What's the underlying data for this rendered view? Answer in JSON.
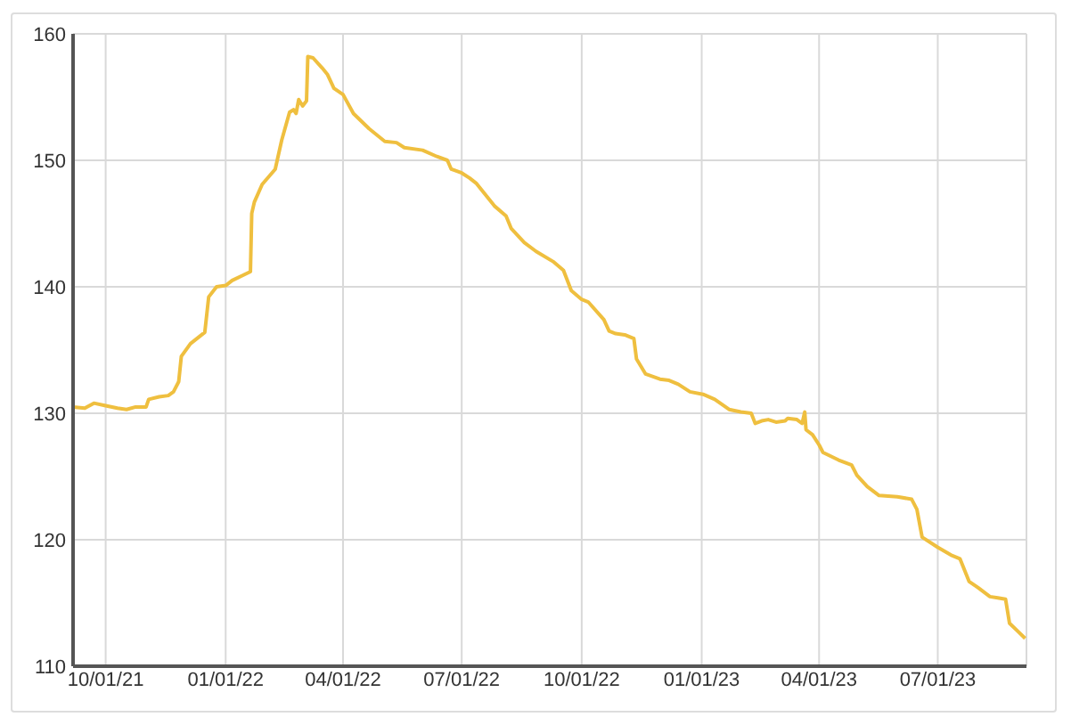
{
  "chart_data": {
    "type": "line",
    "x": [
      "2021-09-06",
      "2021-09-15",
      "2021-09-22",
      "2021-10-01",
      "2021-10-10",
      "2021-10-17",
      "2021-10-24",
      "2021-11-01",
      "2021-11-03",
      "2021-11-11",
      "2021-11-18",
      "2021-11-22",
      "2021-11-26",
      "2021-11-28",
      "2021-12-05",
      "2021-12-16",
      "2021-12-19",
      "2021-12-25",
      "2022-01-01",
      "2022-01-06",
      "2022-01-14",
      "2022-01-20",
      "2022-01-21",
      "2022-01-23",
      "2022-01-29",
      "2022-02-08",
      "2022-02-13",
      "2022-02-19",
      "2022-02-22",
      "2022-02-24",
      "2022-02-26",
      "2022-03-01",
      "2022-03-04",
      "2022-03-05",
      "2022-03-09",
      "2022-03-16",
      "2022-03-20",
      "2022-03-25",
      "2022-04-01",
      "2022-04-09",
      "2022-04-21",
      "2022-05-03",
      "2022-05-12",
      "2022-05-18",
      "2022-06-01",
      "2022-06-12",
      "2022-06-20",
      "2022-06-23",
      "2022-07-01",
      "2022-07-07",
      "2022-07-12",
      "2022-07-26",
      "2022-08-04",
      "2022-08-08",
      "2022-08-18",
      "2022-08-27",
      "2022-09-09",
      "2022-09-17",
      "2022-09-23",
      "2022-10-01",
      "2022-10-06",
      "2022-10-18",
      "2022-10-22",
      "2022-10-27",
      "2022-11-03",
      "2022-11-10",
      "2022-11-12",
      "2022-11-19",
      "2022-11-30",
      "2022-12-07",
      "2022-12-14",
      "2022-12-23",
      "2023-01-02",
      "2023-01-11",
      "2023-01-22",
      "2023-01-31",
      "2023-02-08",
      "2023-02-11",
      "2023-02-16",
      "2023-02-21",
      "2023-02-27",
      "2023-03-06",
      "2023-03-08",
      "2023-03-15",
      "2023-03-19",
      "2023-03-21",
      "2023-03-22",
      "2023-03-27",
      "2023-04-01",
      "2023-04-04",
      "2023-04-16",
      "2023-04-26",
      "2023-04-30",
      "2023-05-08",
      "2023-05-17",
      "2023-05-31",
      "2023-06-11",
      "2023-06-15",
      "2023-06-19",
      "2023-07-01",
      "2023-07-11",
      "2023-07-18",
      "2023-07-25",
      "2023-08-01",
      "2023-08-10",
      "2023-08-16",
      "2023-08-22",
      "2023-08-25",
      "2023-09-01",
      "2023-09-06"
    ],
    "series": [
      {
        "color": "#efbf3f",
        "values": [
          130.5,
          130.4,
          130.8,
          130.6,
          130.4,
          130.3,
          130.5,
          130.5,
          131.1,
          131.3,
          131.4,
          131.7,
          132.5,
          134.5,
          135.5,
          136.4,
          139.2,
          140.0,
          140.1,
          140.5,
          140.9,
          141.2,
          145.8,
          146.7,
          148.1,
          149.3,
          151.6,
          153.8,
          154.0,
          153.7,
          154.8,
          154.3,
          154.7,
          158.2,
          158.1,
          157.3,
          156.8,
          155.7,
          155.2,
          153.7,
          152.5,
          151.5,
          151.4,
          151.0,
          150.8,
          150.3,
          150.0,
          149.3,
          149.0,
          148.6,
          148.2,
          146.4,
          145.6,
          144.6,
          143.5,
          142.8,
          142.0,
          141.3,
          139.7,
          139.0,
          138.8,
          137.4,
          136.5,
          136.3,
          136.2,
          135.9,
          134.3,
          133.1,
          132.7,
          132.6,
          132.3,
          131.7,
          131.5,
          131.1,
          130.3,
          130.1,
          130.0,
          129.2,
          129.4,
          129.5,
          129.3,
          129.4,
          129.6,
          129.5,
          129.2,
          130.1,
          128.7,
          128.3,
          127.5,
          126.9,
          126.3,
          125.9,
          125.1,
          124.2,
          123.5,
          123.4,
          123.2,
          122.4,
          120.2,
          119.4,
          118.8,
          118.5,
          116.7,
          116.2,
          115.5,
          115.4,
          115.3,
          113.4,
          112.7,
          112.2
        ]
      }
    ],
    "xlim": [
      "2021-09-06",
      "2023-09-07"
    ],
    "xticks": [
      {
        "value": "2021-10-01",
        "label": "10/01/21"
      },
      {
        "value": "2022-01-01",
        "label": "01/01/22"
      },
      {
        "value": "2022-04-01",
        "label": "04/01/22"
      },
      {
        "value": "2022-07-01",
        "label": "07/01/22"
      },
      {
        "value": "2022-10-01",
        "label": "10/01/22"
      },
      {
        "value": "2023-01-01",
        "label": "01/01/23"
      },
      {
        "value": "2023-04-01",
        "label": "04/01/23"
      },
      {
        "value": "2023-07-01",
        "label": "07/01/23"
      }
    ],
    "ylim": [
      110,
      160
    ],
    "yticks": [
      110,
      120,
      130,
      140,
      150,
      160
    ],
    "grid": true
  }
}
